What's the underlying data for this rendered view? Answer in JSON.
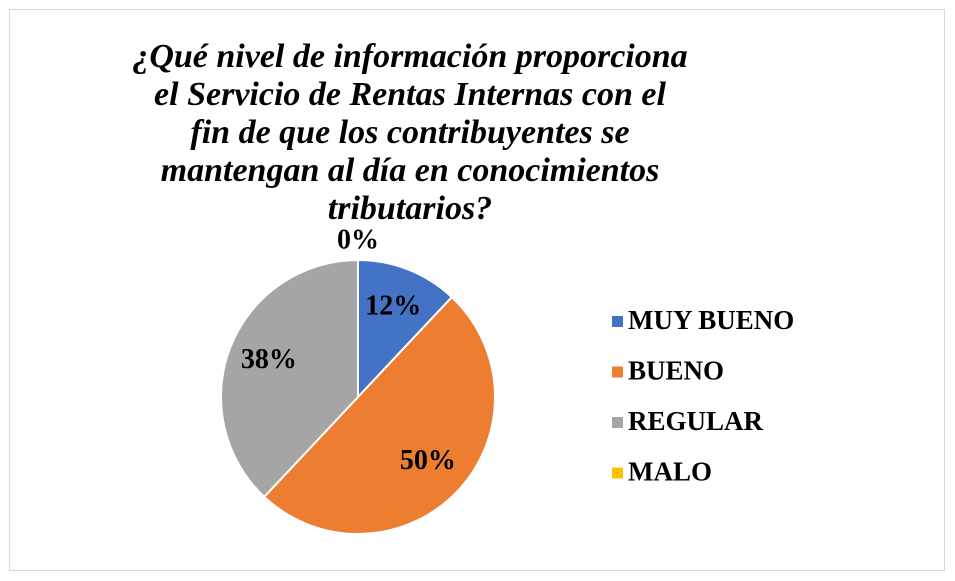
{
  "chart_data": {
    "type": "pie",
    "title": "¿Qué nivel de información proporciona el Servicio de Rentas Internas con el fin de que los contribuyentes se mantengan al día en conocimientos tributarios?",
    "categories": [
      "MUY BUENO",
      "BUENO",
      "REGULAR",
      "MALO"
    ],
    "values": [
      12,
      50,
      38,
      0
    ],
    "value_labels": [
      "12%",
      "50%",
      "38%",
      "0%"
    ],
    "colors": [
      "#4472c4",
      "#ed7d31",
      "#a5a5a5",
      "#ffc000"
    ],
    "legend": "right"
  }
}
